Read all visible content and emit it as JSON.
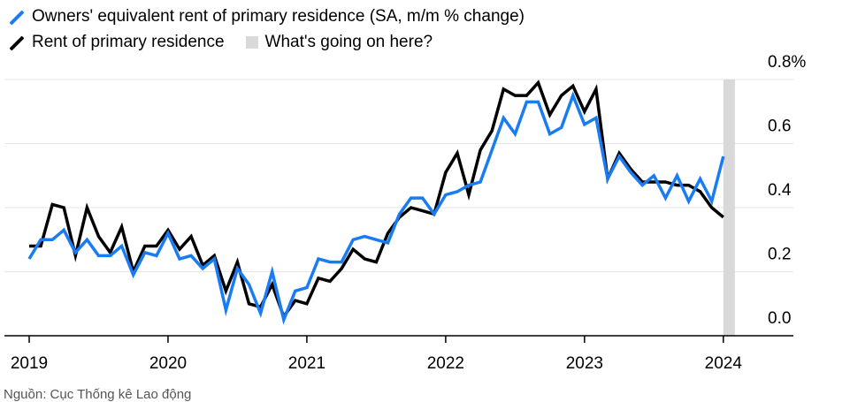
{
  "chart_data": {
    "type": "line",
    "title": "",
    "xlabel": "",
    "ylabel": "",
    "legend": {
      "placement": "top-left",
      "highlight_label": "What's going on here?"
    },
    "grid": true,
    "colors": {
      "oer": "#1a7cf2",
      "rent": "#000000",
      "highlight": "#d9d9d9",
      "grid": "#e6e6e6"
    },
    "start": "2019-01",
    "x_ticks": [
      "2019",
      "2020",
      "2021",
      "2022",
      "2023",
      "2024"
    ],
    "y_ticks": [
      "0.0",
      "0.2",
      "0.4",
      "0.6",
      "0.8%"
    ],
    "ylim": [
      0,
      0.8
    ],
    "highlight": {
      "from": "2024-01",
      "to": "2024-02"
    },
    "series": [
      {
        "name": "Owners' equivalent rent of primary residence (SA, m/m % change)",
        "color": "#1a7cf2",
        "values": [
          0.24,
          0.3,
          0.3,
          0.33,
          0.26,
          0.3,
          0.25,
          0.25,
          0.28,
          0.19,
          0.26,
          0.25,
          0.32,
          0.24,
          0.25,
          0.21,
          0.24,
          0.08,
          0.21,
          0.16,
          0.07,
          0.2,
          0.05,
          0.14,
          0.15,
          0.24,
          0.23,
          0.23,
          0.3,
          0.31,
          0.3,
          0.29,
          0.38,
          0.43,
          0.43,
          0.38,
          0.44,
          0.45,
          0.47,
          0.48,
          0.58,
          0.68,
          0.63,
          0.73,
          0.73,
          0.63,
          0.65,
          0.75,
          0.66,
          0.68,
          0.49,
          0.56,
          0.51,
          0.47,
          0.5,
          0.43,
          0.5,
          0.42,
          0.49,
          0.42,
          0.56
        ]
      },
      {
        "name": "Rent of primary residence",
        "color": "#000000",
        "values": [
          0.28,
          0.28,
          0.41,
          0.4,
          0.25,
          0.4,
          0.31,
          0.26,
          0.34,
          0.2,
          0.28,
          0.28,
          0.33,
          0.27,
          0.31,
          0.22,
          0.25,
          0.14,
          0.23,
          0.1,
          0.09,
          0.16,
          0.06,
          0.11,
          0.1,
          0.18,
          0.17,
          0.21,
          0.27,
          0.24,
          0.23,
          0.32,
          0.37,
          0.4,
          0.39,
          0.38,
          0.51,
          0.57,
          0.44,
          0.58,
          0.64,
          0.77,
          0.75,
          0.75,
          0.79,
          0.69,
          0.75,
          0.78,
          0.7,
          0.77,
          0.49,
          0.57,
          0.52,
          0.48,
          0.48,
          0.48,
          0.47,
          0.47,
          0.45,
          0.4,
          0.37
        ]
      }
    ]
  }
}
